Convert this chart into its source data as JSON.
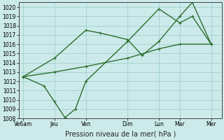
{
  "background_color": "#cceaea",
  "grid_color": "#99cccc",
  "line_color": "#2d6e2d",
  "xlabel": "Pression niveau de la mer( hPa )",
  "ylim": [
    1008,
    1020.5
  ],
  "yticks": [
    1008,
    1009,
    1010,
    1011,
    1012,
    1013,
    1014,
    1015,
    1016,
    1017,
    1018,
    1019,
    1020
  ],
  "xtick_labels": [
    "Ve6am",
    "Jeu",
    "Ven",
    "Dim",
    "Lun",
    "Mar",
    "Mer"
  ],
  "xtick_positions": [
    0,
    1.5,
    3.0,
    5.0,
    6.5,
    7.5,
    9.0
  ],
  "xlim": [
    -0.2,
    9.5
  ],
  "line1_x": [
    0,
    1.5,
    3.0,
    5.0,
    6.5,
    7.5,
    9.0
  ],
  "line1_y": [
    1012.5,
    1013.0,
    1013.6,
    1014.5,
    1015.5,
    1016.0,
    1016.0
  ],
  "line2_x": [
    0,
    1.5,
    3.0,
    3.7,
    5.0,
    5.7,
    6.5,
    7.5,
    8.1,
    9.0
  ],
  "line2_y": [
    1012.5,
    1014.5,
    1017.5,
    1017.2,
    1016.5,
    1014.8,
    1016.3,
    1019.0,
    1020.5,
    1016.0
  ],
  "line3_x": [
    0,
    1.0,
    1.5,
    2.0,
    2.5,
    3.0,
    5.0,
    6.5,
    7.5,
    8.1,
    9.0
  ],
  "line3_y": [
    1012.5,
    1011.5,
    1009.8,
    1008.1,
    1009.0,
    1012.0,
    1016.3,
    1019.8,
    1018.3,
    1019.0,
    1016.0
  ],
  "marker_size": 2.5,
  "linewidth": 1.0,
  "ytick_fontsize": 5.5,
  "xtick_fontsize": 5.5,
  "xlabel_fontsize": 7.0
}
